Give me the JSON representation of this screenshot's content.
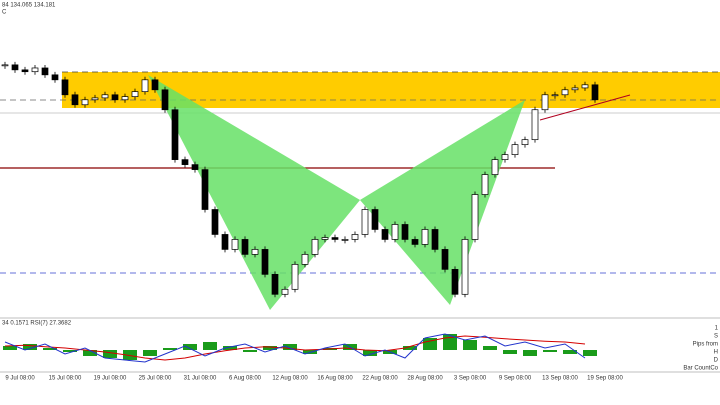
{
  "header": {
    "ohlc": "84 134.065 134.181",
    "sub": "C"
  },
  "chart_data": [
    {
      "type": "candlestick",
      "close": [
        133.96,
        133.88,
        133.85,
        133.91,
        133.8,
        133.72,
        133.48,
        133.32,
        133.4,
        133.43,
        133.48,
        133.4,
        133.45,
        133.53,
        133.72,
        133.56,
        133.24,
        132.44,
        132.36,
        132.28,
        131.64,
        131.24,
        131.0,
        131.16,
        130.92,
        131.0,
        130.6,
        130.28,
        130.36,
        130.76,
        130.92,
        131.16,
        131.19,
        131.16,
        131.16,
        131.24,
        131.64,
        131.32,
        131.16,
        131.4,
        131.16,
        131.08,
        131.32,
        131.0,
        130.68,
        130.28,
        131.16,
        131.88,
        132.2,
        132.44,
        132.52,
        132.68,
        132.76,
        133.24,
        133.48,
        133.48,
        133.56,
        133.59,
        133.64,
        133.4
      ],
      "ylim": [
        129.9,
        135.0
      ],
      "color_up": "#ffffff",
      "color_down": "#000000"
    },
    {
      "type": "line",
      "label": "34 0.1571  RSI(7) 27.3682",
      "ylim": [
        0,
        100
      ],
      "y2lim": [
        -1,
        1
      ],
      "series": [
        {
          "type": "bar",
          "axis": "y2",
          "color": "#1a9b1a",
          "values": [
            0.2,
            0.3,
            0.1,
            -0.1,
            -0.3,
            -0.4,
            -0.5,
            -0.3,
            0.1,
            0.3,
            0.4,
            0.2,
            -0.1,
            0.2,
            0.3,
            -0.2,
            0.1,
            0.3,
            -0.3,
            -0.2,
            0.2,
            0.6,
            0.8,
            0.5,
            0.2,
            -0.2,
            -0.3,
            -0.1,
            -0.2,
            -0.3
          ]
        },
        {
          "type": "line",
          "color": "#d40000",
          "values": [
            60,
            62,
            58,
            55,
            50,
            45,
            38,
            30,
            25,
            30,
            40,
            48,
            55,
            58,
            55,
            50,
            52,
            55,
            50,
            48,
            55,
            70,
            80,
            85,
            82,
            78,
            75,
            72,
            70,
            65
          ]
        },
        {
          "type": "line",
          "color": "#2233cc",
          "values": [
            70,
            50,
            65,
            40,
            55,
            30,
            25,
            20,
            40,
            60,
            35,
            55,
            65,
            45,
            60,
            40,
            55,
            65,
            35,
            50,
            30,
            80,
            90,
            75,
            85,
            60,
            70,
            55,
            65,
            30
          ]
        }
      ]
    }
  ],
  "time_axis": [
    "9 Jul 08:00",
    "15 Jul 08:00",
    "19 Jul 08:00",
    "25 Jul 08:00",
    "31 Jul 08:00",
    "6 Aug 08:00",
    "12 Aug 08:00",
    "16 Aug 08:00",
    "22 Aug 08:00",
    "28 Aug 08:00",
    "3 Sep 08:00",
    "9 Sep 08:00",
    "13 Sep 08:00",
    "19 Sep 08:00"
  ],
  "side_panel": [
    "1",
    "S",
    "Pips from",
    "H",
    "D",
    "Bar CountCo"
  ]
}
